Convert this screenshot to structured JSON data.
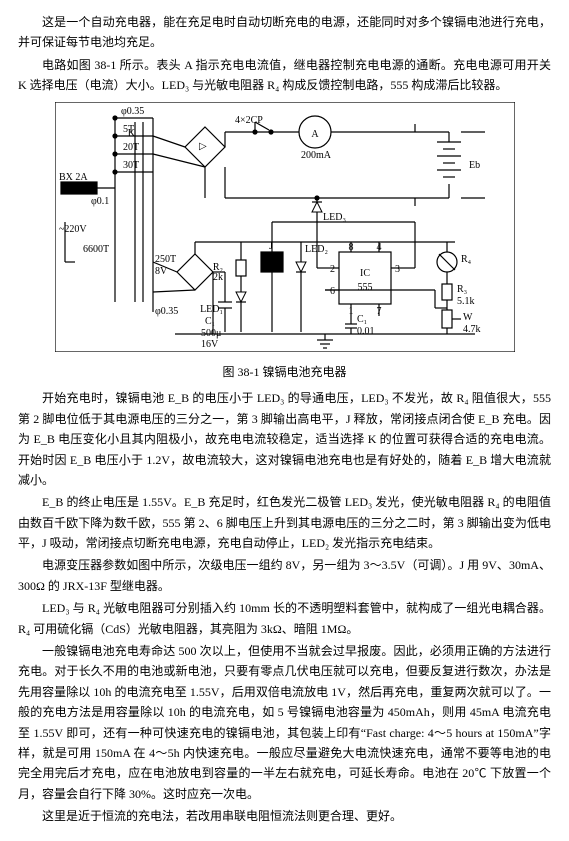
{
  "intro": {
    "p1": "这是一个自动充电器，能在充足电时自动切断充电的电源，还能同时对多个镍镉电池进行充电，并可保证每节电池均充足。",
    "p2": "电路如图 38-1 所示。表头 A 指示充电电流值，继电器控制充电电源的通断。充电电源可用开关 K 选择电压（电流）大小。LED₃ 与光敏电阻器 R₄ 构成反馈控制电路，555 构成滞后比较器。"
  },
  "figure": {
    "caption": "图 38-1  镍镉电池充电器",
    "labels": {
      "top035": "φ0.35",
      "v5T": "5T",
      "K": "K",
      "v20T": "20T",
      "v30T": "30T",
      "bx2a": "BX 2A",
      "v01": "φ0.1",
      "acv": "~220V",
      "n6600T": "6600T",
      "n250T": "250T",
      "v8V": "8V",
      "bot035": "φ0.35",
      "c1a": "C₁",
      "c1val": "500μ\n16V",
      "r2": "R₂",
      "r2v": "2k",
      "led1": "LED₁",
      "j": "J",
      "led2": "LED₂",
      "led3": "LED₃",
      "ic": "IC",
      "ic555": "555",
      "r4": "R₄",
      "r3": "R₃",
      "r3v": "5.1k",
      "w": "W",
      "wv": "4.7k",
      "c1b": "C₁",
      "c1bv": "0.01",
      "diodes": "4×2CP",
      "ammeter": "A",
      "amv": "200mA",
      "eb": "Eb",
      "pins": [
        "8",
        "4",
        "2",
        "6",
        "1",
        "3",
        "7"
      ]
    },
    "style": {
      "stroke": "#000000",
      "bg": "#ffffff",
      "stroke_width": 1.2,
      "font_size": 10
    }
  },
  "body": {
    "p3": "开始充电时，镍镉电池 E_B 的电压小于 LED₃ 的导通电压，LED₃ 不发光，故 R₄ 阻值很大，555 第 2 脚电位低于其电源电压的三分之一，第 3 脚输出高电平，J 释放，常闭接点闭合使 E_B 充电。因为 E_B 电压变化小且其内阻极小，故充电电流较稳定，适当选择 K 的位置可获得合适的充电电流。开始时因 E_B 电压小于 1.2V，故电流较大，这对镍镉电池充电也是有好处的，随着 E_B 增大电流就减小。",
    "p4": "E_B 的终止电压是 1.55V。E_B 充足时，红色发光二极管 LED₃ 发光，使光敏电阻器 R₄ 的电阻值由数百千欧下降为数千欧，555 第 2、6 脚电压上升到其电源电压的三分之二时，第 3 脚输出变为低电平，J 吸动，常闭接点切断充电电源，充电自动停止，LED₂ 发光指示充电结束。",
    "p5": "电源变压器参数如图中所示，次级电压一组约 8V，另一组为 3～3.5V（可调）。J 用 9V、30mA、300Ω 的 JRX-13F 型继电器。",
    "p6": "LED₃ 与 R₄ 光敏电阻器可分别插入约 10mm 长的不透明塑料套管中，就构成了一组光电耦合器。R₄ 可用硫化镉（CdS）光敏电阻器，其亮阻为 3kΩ、暗阻 1MΩ。",
    "p7": "一般镍镉电池充电寿命达 500 次以上，但使用不当就会过早报废。因此，必须用正确的方法进行充电。对于长久不用的电池或新电池，只要有零点几伏电压就可以充电，但要反复进行数次，办法是先用容量除以 10h 的电流充电至 1.55V，后用双倍电流放电 1V，然后再充电，重复两次就可以了。一般的充电方法是用容量除以 10h 的电流充电，如 5 号镍镉电池容量为 450mAh，则用 45mA 电流充电至 1.55V 即可，还有一种可快速充电的镍镉电池，其包装上印有“Fast charge: 4～5 hours at 150mA”字样，就是可用 150mA 在 4～5h 内快速充电。一般应尽量避免大电流快速充电，通常不要等电池的电完全用完后才充电，应在电池放电到容量的一半左右就充电，可延长寿命。电池在 20℃ 下放置一个月，容量会自行下降 30%。这时应充一次电。",
    "p8": "这里是近于恒流的充电法，若改用串联电阻恒流法则更合理、更好。"
  }
}
